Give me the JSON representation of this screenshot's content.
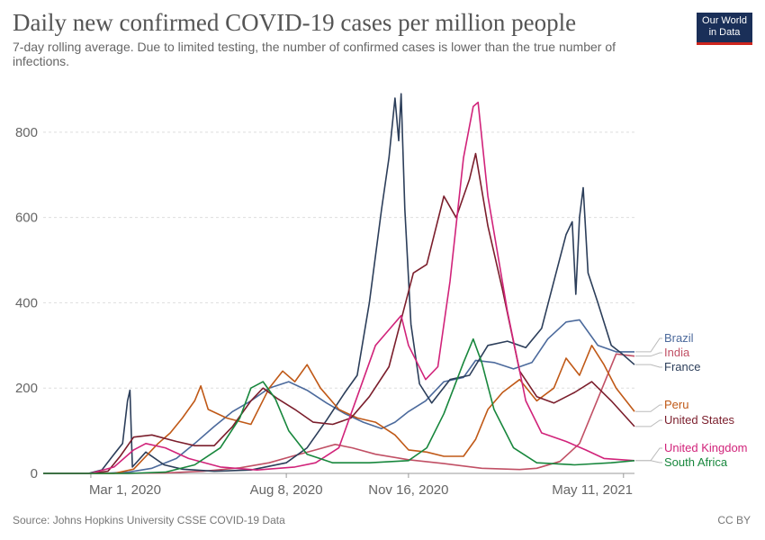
{
  "header": {
    "title": "Daily new confirmed COVID-19 cases per million people",
    "subtitle": "7-day rolling average. Due to limited testing, the number of confirmed cases is lower than the true number of infections.",
    "logo_line1": "Our World",
    "logo_line2": "in Data"
  },
  "footer": {
    "source": "Source: Johns Hopkins University CSSE COVID-19 Data",
    "license": "CC BY"
  },
  "chart_data": {
    "type": "line",
    "title": "Daily new confirmed COVID-19 cases per million people",
    "xlabel": "",
    "ylabel": "",
    "x_tick_labels": [
      "Mar 1, 2020",
      "Aug 8, 2020",
      "Nov 16, 2020",
      "May 11, 2021"
    ],
    "x_tick_dates": [
      "2020-03-01",
      "2020-08-08",
      "2020-11-16",
      "2021-05-11"
    ],
    "x_range": [
      "2020-01-22",
      "2021-05-20"
    ],
    "y_ticks": [
      0,
      200,
      400,
      600,
      800
    ],
    "ylim": [
      0,
      920
    ],
    "grid": "horizontal-dashed",
    "legend": "right",
    "series": [
      {
        "name": "Brazil",
        "color": "#4c6a9c",
        "points": [
          [
            "2020-01-22",
            0
          ],
          [
            "2020-03-10",
            0
          ],
          [
            "2020-04-01",
            3
          ],
          [
            "2020-04-20",
            12
          ],
          [
            "2020-05-10",
            35
          ],
          [
            "2020-05-25",
            70
          ],
          [
            "2020-06-10",
            110
          ],
          [
            "2020-06-25",
            145
          ],
          [
            "2020-07-10",
            170
          ],
          [
            "2020-07-25",
            200
          ],
          [
            "2020-08-10",
            215
          ],
          [
            "2020-08-25",
            195
          ],
          [
            "2020-09-10",
            165
          ],
          [
            "2020-09-25",
            140
          ],
          [
            "2020-10-10",
            120
          ],
          [
            "2020-10-25",
            105
          ],
          [
            "2020-11-05",
            120
          ],
          [
            "2020-11-16",
            145
          ],
          [
            "2020-11-30",
            170
          ],
          [
            "2020-12-15",
            215
          ],
          [
            "2020-12-31",
            225
          ],
          [
            "2021-01-10",
            265
          ],
          [
            "2021-01-25",
            260
          ],
          [
            "2021-02-10",
            245
          ],
          [
            "2021-02-25",
            260
          ],
          [
            "2021-03-10",
            315
          ],
          [
            "2021-03-25",
            355
          ],
          [
            "2021-04-05",
            360
          ],
          [
            "2021-04-20",
            300
          ],
          [
            "2021-05-05",
            285
          ],
          [
            "2021-05-20",
            285
          ]
        ]
      },
      {
        "name": "India",
        "color": "#c15065",
        "points": [
          [
            "2020-01-22",
            0
          ],
          [
            "2020-04-01",
            0
          ],
          [
            "2020-05-01",
            1
          ],
          [
            "2020-06-01",
            5
          ],
          [
            "2020-07-01",
            13
          ],
          [
            "2020-07-25",
            25
          ],
          [
            "2020-08-15",
            42
          ],
          [
            "2020-09-01",
            55
          ],
          [
            "2020-09-17",
            68
          ],
          [
            "2020-10-01",
            60
          ],
          [
            "2020-10-20",
            45
          ],
          [
            "2020-11-16",
            32
          ],
          [
            "2020-12-15",
            23
          ],
          [
            "2021-01-15",
            12
          ],
          [
            "2021-02-15",
            9
          ],
          [
            "2021-03-01",
            12
          ],
          [
            "2021-03-20",
            28
          ],
          [
            "2021-04-05",
            70
          ],
          [
            "2021-04-20",
            175
          ],
          [
            "2021-05-05",
            280
          ],
          [
            "2021-05-20",
            275
          ]
        ]
      },
      {
        "name": "France",
        "color": "#2c3e5a",
        "points": [
          [
            "2020-01-22",
            0
          ],
          [
            "2020-02-28",
            0
          ],
          [
            "2020-03-10",
            8
          ],
          [
            "2020-03-20",
            45
          ],
          [
            "2020-03-27",
            70
          ],
          [
            "2020-03-31",
            170
          ],
          [
            "2020-04-02",
            195
          ],
          [
            "2020-04-04",
            15
          ],
          [
            "2020-04-15",
            50
          ],
          [
            "2020-04-30",
            20
          ],
          [
            "2020-05-15",
            10
          ],
          [
            "2020-06-10",
            5
          ],
          [
            "2020-07-10",
            8
          ],
          [
            "2020-08-08",
            25
          ],
          [
            "2020-08-25",
            60
          ],
          [
            "2020-09-10",
            125
          ],
          [
            "2020-09-25",
            190
          ],
          [
            "2020-10-05",
            230
          ],
          [
            "2020-10-15",
            400
          ],
          [
            "2020-10-25",
            620
          ],
          [
            "2020-10-31",
            740
          ],
          [
            "2020-11-05",
            880
          ],
          [
            "2020-11-08",
            780
          ],
          [
            "2020-11-10",
            890
          ],
          [
            "2020-11-13",
            620
          ],
          [
            "2020-11-18",
            350
          ],
          [
            "2020-11-25",
            210
          ],
          [
            "2020-12-05",
            165
          ],
          [
            "2020-12-20",
            220
          ],
          [
            "2021-01-05",
            230
          ],
          [
            "2021-01-20",
            300
          ],
          [
            "2021-02-05",
            310
          ],
          [
            "2021-02-20",
            295
          ],
          [
            "2021-03-05",
            340
          ],
          [
            "2021-03-15",
            450
          ],
          [
            "2021-03-25",
            560
          ],
          [
            "2021-03-30",
            590
          ],
          [
            "2021-04-02",
            420
          ],
          [
            "2021-04-05",
            600
          ],
          [
            "2021-04-08",
            670
          ],
          [
            "2021-04-12",
            470
          ],
          [
            "2021-04-20",
            400
          ],
          [
            "2021-05-01",
            300
          ],
          [
            "2021-05-10",
            280
          ],
          [
            "2021-05-20",
            255
          ]
        ]
      },
      {
        "name": "Peru",
        "color": "#c05917",
        "points": [
          [
            "2020-01-22",
            0
          ],
          [
            "2020-03-20",
            0
          ],
          [
            "2020-04-05",
            10
          ],
          [
            "2020-04-25",
            70
          ],
          [
            "2020-05-05",
            95
          ],
          [
            "2020-05-15",
            130
          ],
          [
            "2020-05-25",
            170
          ],
          [
            "2020-05-30",
            205
          ],
          [
            "2020-06-05",
            150
          ],
          [
            "2020-06-20",
            130
          ],
          [
            "2020-07-10",
            115
          ],
          [
            "2020-07-25",
            200
          ],
          [
            "2020-08-05",
            240
          ],
          [
            "2020-08-15",
            215
          ],
          [
            "2020-08-25",
            255
          ],
          [
            "2020-09-05",
            200
          ],
          [
            "2020-09-20",
            150
          ],
          [
            "2020-10-05",
            130
          ],
          [
            "2020-10-20",
            120
          ],
          [
            "2020-11-05",
            90
          ],
          [
            "2020-11-16",
            55
          ],
          [
            "2020-12-01",
            50
          ],
          [
            "2020-12-15",
            40
          ],
          [
            "2020-12-31",
            40
          ],
          [
            "2021-01-10",
            80
          ],
          [
            "2021-01-20",
            150
          ],
          [
            "2021-02-01",
            190
          ],
          [
            "2021-02-15",
            220
          ],
          [
            "2021-03-01",
            170
          ],
          [
            "2021-03-15",
            200
          ],
          [
            "2021-03-25",
            270
          ],
          [
            "2021-04-05",
            230
          ],
          [
            "2021-04-15",
            300
          ],
          [
            "2021-04-25",
            255
          ],
          [
            "2021-05-05",
            200
          ],
          [
            "2021-05-20",
            145
          ]
        ]
      },
      {
        "name": "United States",
        "color": "#7b1e2c",
        "points": [
          [
            "2020-01-22",
            0
          ],
          [
            "2020-03-01",
            0
          ],
          [
            "2020-03-15",
            5
          ],
          [
            "2020-03-25",
            40
          ],
          [
            "2020-04-05",
            85
          ],
          [
            "2020-04-20",
            90
          ],
          [
            "2020-05-10",
            75
          ],
          [
            "2020-05-25",
            65
          ],
          [
            "2020-06-10",
            65
          ],
          [
            "2020-06-25",
            110
          ],
          [
            "2020-07-10",
            170
          ],
          [
            "2020-07-20",
            200
          ],
          [
            "2020-08-01",
            175
          ],
          [
            "2020-08-15",
            150
          ],
          [
            "2020-08-30",
            120
          ],
          [
            "2020-09-15",
            115
          ],
          [
            "2020-09-30",
            130
          ],
          [
            "2020-10-15",
            180
          ],
          [
            "2020-10-31",
            250
          ],
          [
            "2020-11-10",
            360
          ],
          [
            "2020-11-20",
            470
          ],
          [
            "2020-12-01",
            490
          ],
          [
            "2020-12-15",
            650
          ],
          [
            "2020-12-25",
            600
          ],
          [
            "2021-01-05",
            690
          ],
          [
            "2021-01-10",
            750
          ],
          [
            "2021-01-20",
            580
          ],
          [
            "2021-02-01",
            430
          ],
          [
            "2021-02-15",
            240
          ],
          [
            "2021-03-01",
            180
          ],
          [
            "2021-03-15",
            165
          ],
          [
            "2021-04-01",
            190
          ],
          [
            "2021-04-15",
            215
          ],
          [
            "2021-05-01",
            170
          ],
          [
            "2021-05-20",
            110
          ]
        ]
      },
      {
        "name": "United Kingdom",
        "color": "#d1237a",
        "points": [
          [
            "2020-01-22",
            0
          ],
          [
            "2020-03-01",
            0
          ],
          [
            "2020-03-20",
            15
          ],
          [
            "2020-04-05",
            55
          ],
          [
            "2020-04-15",
            70
          ],
          [
            "2020-05-01",
            60
          ],
          [
            "2020-05-20",
            35
          ],
          [
            "2020-06-15",
            15
          ],
          [
            "2020-07-15",
            8
          ],
          [
            "2020-08-15",
            15
          ],
          [
            "2020-09-01",
            25
          ],
          [
            "2020-09-20",
            60
          ],
          [
            "2020-10-05",
            180
          ],
          [
            "2020-10-20",
            300
          ],
          [
            "2020-11-01",
            340
          ],
          [
            "2020-11-10",
            370
          ],
          [
            "2020-11-16",
            300
          ],
          [
            "2020-11-30",
            220
          ],
          [
            "2020-12-10",
            250
          ],
          [
            "2020-12-20",
            450
          ],
          [
            "2020-12-31",
            740
          ],
          [
            "2021-01-08",
            860
          ],
          [
            "2021-01-12",
            870
          ],
          [
            "2021-01-20",
            650
          ],
          [
            "2021-02-05",
            380
          ],
          [
            "2021-02-20",
            170
          ],
          [
            "2021-03-05",
            95
          ],
          [
            "2021-03-25",
            75
          ],
          [
            "2021-04-10",
            55
          ],
          [
            "2021-04-25",
            35
          ],
          [
            "2021-05-20",
            30
          ]
        ]
      },
      {
        "name": "South Africa",
        "color": "#18873d",
        "points": [
          [
            "2020-01-22",
            0
          ],
          [
            "2020-04-01",
            0
          ],
          [
            "2020-05-01",
            3
          ],
          [
            "2020-05-25",
            20
          ],
          [
            "2020-06-15",
            60
          ],
          [
            "2020-07-01",
            130
          ],
          [
            "2020-07-10",
            200
          ],
          [
            "2020-07-20",
            215
          ],
          [
            "2020-07-30",
            175
          ],
          [
            "2020-08-10",
            100
          ],
          [
            "2020-08-25",
            45
          ],
          [
            "2020-09-15",
            25
          ],
          [
            "2020-10-15",
            25
          ],
          [
            "2020-11-16",
            30
          ],
          [
            "2020-12-01",
            60
          ],
          [
            "2020-12-15",
            140
          ],
          [
            "2020-12-31",
            260
          ],
          [
            "2021-01-08",
            315
          ],
          [
            "2021-01-15",
            260
          ],
          [
            "2021-01-25",
            150
          ],
          [
            "2021-02-10",
            60
          ],
          [
            "2021-03-01",
            25
          ],
          [
            "2021-04-01",
            20
          ],
          [
            "2021-05-01",
            25
          ],
          [
            "2021-05-20",
            30
          ]
        ]
      }
    ]
  }
}
